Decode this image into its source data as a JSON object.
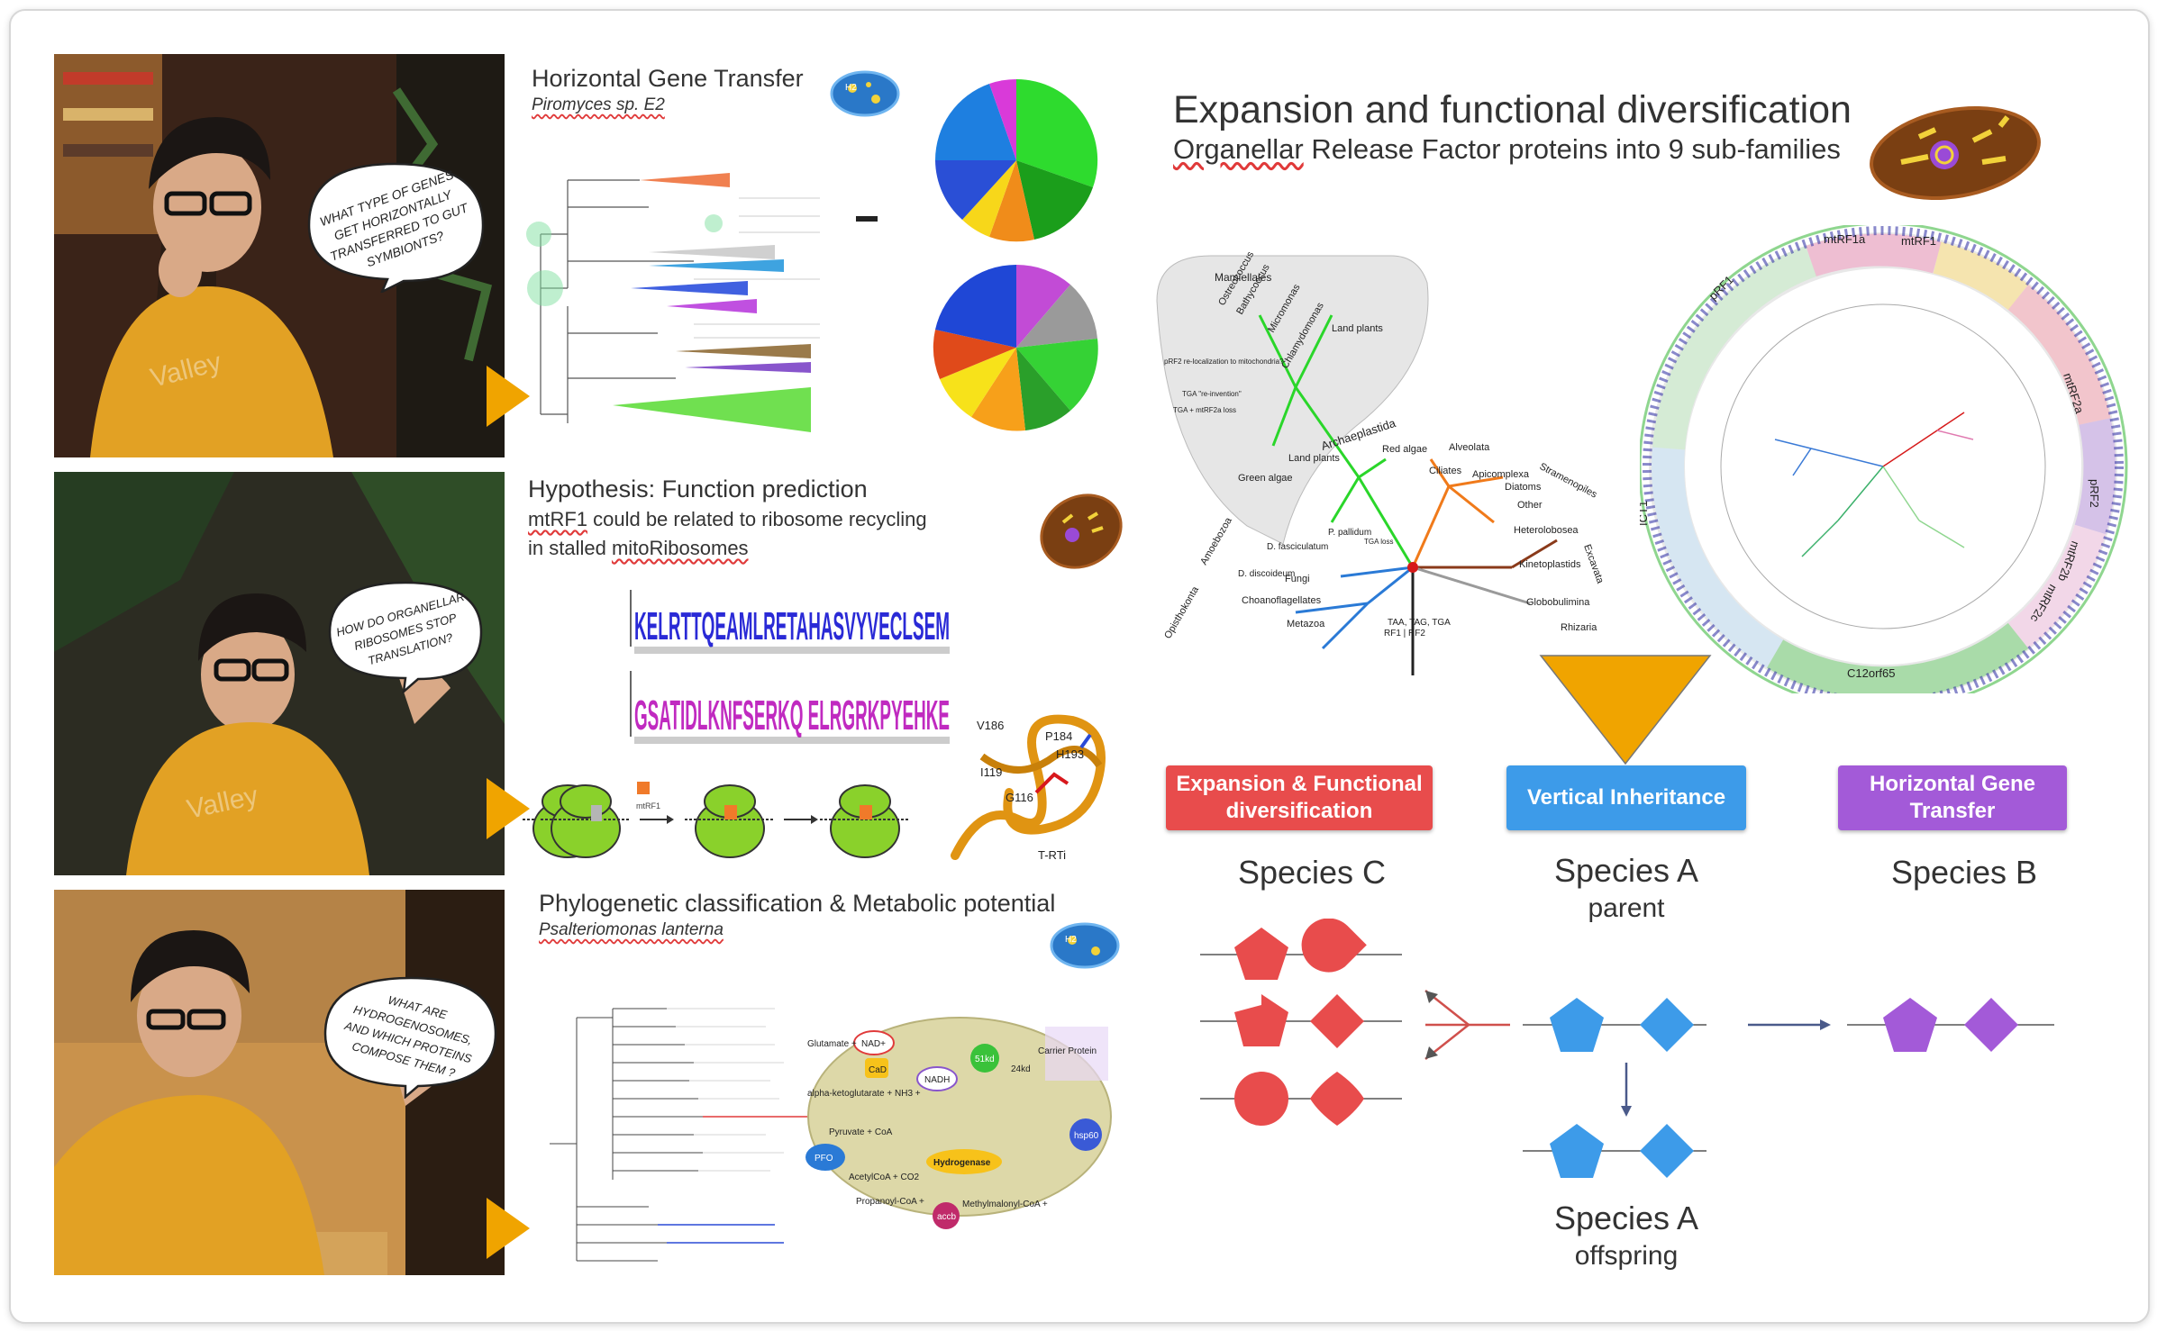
{
  "panels": [
    {
      "title": "Horizontal Gene Transfer",
      "subtitle": "Piromyces sp. E2",
      "bubble": [
        "WHAT TYPE OF GENES",
        "GET HORIZONTALLY",
        "TRANSFERRED TO GUT",
        "SYMBIONTS?"
      ],
      "badge": "H2"
    },
    {
      "title": "Hypothesis: Function prediction",
      "subtitle_line1_a": "mtRF1",
      "subtitle_line1_b": " could be related to ribosome recycling",
      "subtitle_line2_a": "in stalled ",
      "subtitle_line2_b": "mitoRibosomes",
      "bubble": [
        "HOW DO ORGANELLAR",
        "RIBOSOMES STOP",
        "TRANSLATION?"
      ],
      "structure_labels": [
        "V186",
        "P184",
        "H193",
        "I119",
        "G116",
        "T-RTi"
      ],
      "logo1_seq": "KELRTTQEAMLRETAHASVYVECLSEM",
      "logo2_seq": "GSATIDLKNFSERKQ ELRGRKPYEHKE",
      "ribo_label": "mtRF1"
    },
    {
      "title": "Phylogenetic classification & Metabolic potential",
      "subtitle": "Psalteriomonas lanterna",
      "bubble": [
        "WHAT ARE",
        "HYDROGENOSOMES,",
        "AND WHICH PROTEINS",
        "COMPOSE THEM ?"
      ],
      "badge": "H2",
      "metabolism_labels": [
        "Glutamate +",
        "NAD+",
        "CaD",
        "alpha-ketoglutarate + NH3 +",
        "NADH",
        "Pyruvate + CoA",
        "PFO",
        "AcetylCoA + CO2",
        "Hydrogenase",
        "Propanoyl-CoA +",
        "Methylmalonyl-CoA +",
        "Carrier Protein",
        "hsp60",
        "51kd",
        "24kd",
        "accb"
      ]
    }
  ],
  "right": {
    "title": "Expansion and functional diversification",
    "subtitle_a": "Organellar",
    "subtitle_b": " Release Factor proteins into 9 sub-families",
    "tree_labels": [
      "Mamiellales",
      "Ostreococcus",
      "Bathycoccus",
      "Micromonas",
      "Chlamydomonas",
      "Land plants",
      "Archaeplastida",
      "Land plants",
      "Red algae",
      "Green algae",
      "Alveolata",
      "Ciliates",
      "Apicomplexa",
      "Stramenopiles",
      "Diatoms",
      "Other",
      "Excavata",
      "Heterolobosea",
      "Kinetoplastids",
      "Globobulimina",
      "Rhizaria",
      "Amoebozoa",
      "D. fasciculatum",
      "P. pallidum",
      "D. discoideum",
      "Fungi",
      "Choanoflagellates",
      "Opisthokonta",
      "Metazoa",
      "TAA, TAG, TGA",
      "RF1 | RF2",
      "pRF2 re-localization to mitochondria?",
      "TGA \"re-invention\"",
      "TGA + mtRF2a loss",
      "TGA loss"
    ],
    "circle_labels": [
      "mtRF1a",
      "mtRF1",
      "pRF1",
      "mtRF2a",
      "pRF2",
      "mtRF2b",
      "mtRF2c",
      "ICT1",
      "C12orf65"
    ],
    "buttons": [
      {
        "label": "Expansion & Functional diversification",
        "color": "#e84c4c"
      },
      {
        "label": "Vertical Inheritance",
        "color": "#3d9be9"
      },
      {
        "label": "Horizontal Gene Transfer",
        "color": "#a35ad8"
      }
    ],
    "species": [
      {
        "name": "Species C",
        "sub": ""
      },
      {
        "name": "Species A",
        "sub": "parent"
      },
      {
        "name": "Species B",
        "sub": ""
      },
      {
        "name": "Species A",
        "sub": "offspring"
      }
    ]
  },
  "colors": {
    "accent_orange": "#f0a400",
    "red": "#e84c4c",
    "blue": "#3d9be9",
    "purple": "#a35ad8"
  }
}
